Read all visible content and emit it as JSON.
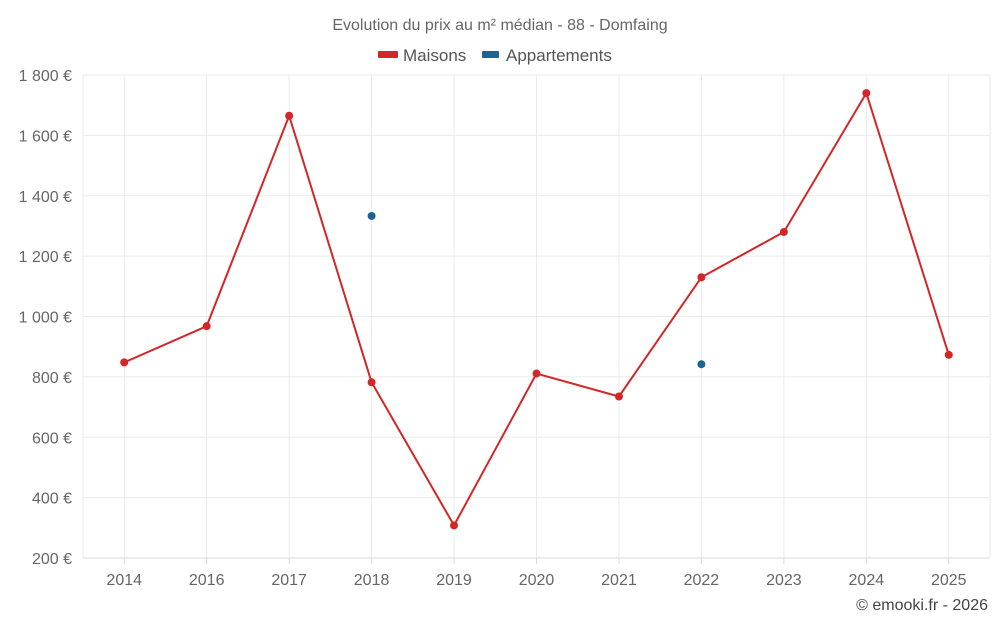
{
  "chart_data": {
    "type": "line",
    "title": "Evolution du prix au m² médian - 88 - Domfaing",
    "categories": [
      "2014",
      "2016",
      "2017",
      "2018",
      "2019",
      "2020",
      "2021",
      "2022",
      "2023",
      "2024",
      "2025"
    ],
    "series": [
      {
        "name": "Maisons",
        "color": "#d32626",
        "values": [
          848,
          968,
          1665,
          782,
          308,
          811,
          735,
          1130,
          1280,
          1740,
          873
        ],
        "connect": true
      },
      {
        "name": "Appartements",
        "color": "#1a6496",
        "values": [
          null,
          null,
          null,
          1333,
          null,
          null,
          null,
          842,
          null,
          null,
          null
        ],
        "connect": false
      }
    ],
    "ylim": [
      200,
      1800
    ],
    "yticks": [
      200,
      400,
      600,
      800,
      1000,
      1200,
      1400,
      1600,
      1800
    ],
    "ytick_labels": [
      "200 €",
      "400 €",
      "600 €",
      "800 €",
      "1 000 €",
      "1 200 €",
      "1 400 €",
      "1 600 €",
      "1 800 €"
    ],
    "xlabel": "",
    "ylabel": "",
    "grid": true,
    "legend_position": "top-center"
  },
  "credit": "© emooki.fr - 2026"
}
